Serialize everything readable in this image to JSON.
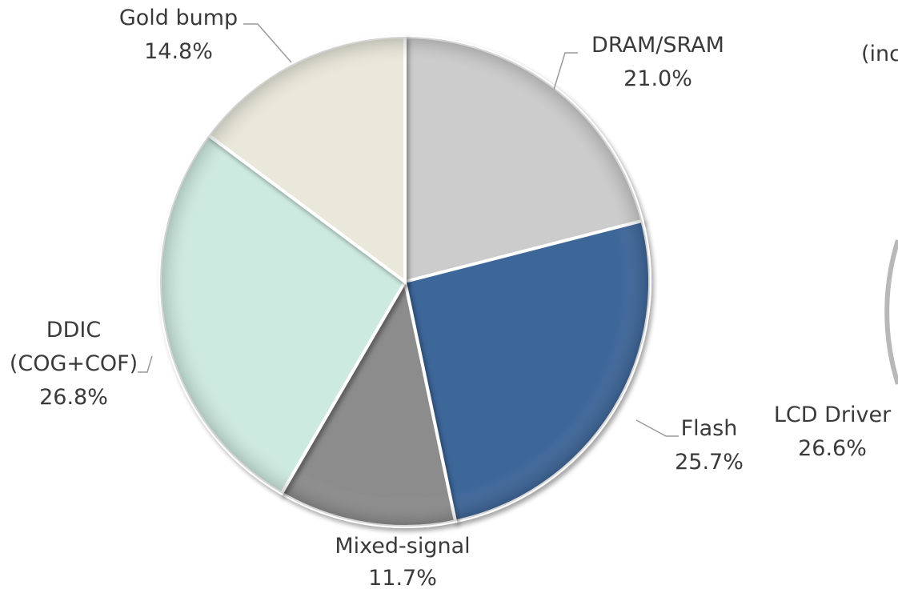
{
  "chart_data": [
    {
      "type": "pie",
      "slices": [
        {
          "name": "DRAM/SRAM",
          "value": 21.0,
          "label": "21.0%",
          "color": "#cccccc"
        },
        {
          "name": "Flash",
          "value": 25.7,
          "label": "25.7%",
          "color": "#3e6699"
        },
        {
          "name": "Mixed-signal",
          "value": 11.7,
          "label": "11.7%",
          "color": "#8c8c8c"
        },
        {
          "name_lines": [
            "DDIC",
            "(COG+COF)"
          ],
          "name": "DDIC (COG+COF)",
          "value": 26.8,
          "label": "26.8%",
          "color": "#cdeae0"
        },
        {
          "name": "Gold bump",
          "value": 14.8,
          "label": "14.8%",
          "color": "#e9e8da"
        }
      ]
    },
    {
      "type": "pie",
      "partial": true,
      "visible_labels": [
        {
          "name": "LCD Driver",
          "value": 26.6,
          "label": "26.6%"
        },
        {
          "name": "(inc",
          "label": ""
        }
      ]
    }
  ]
}
